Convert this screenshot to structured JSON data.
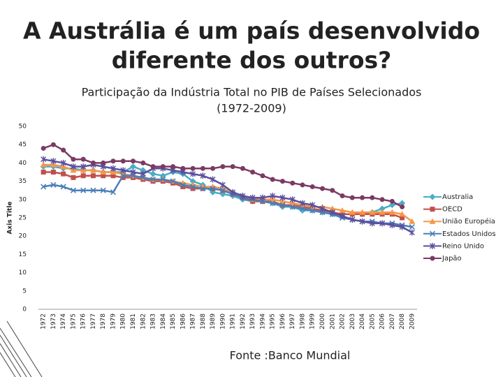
{
  "slide_title": [
    "A Austrália é um país desenvolvido",
    "diferente dos outros?"
  ],
  "source": "Fonte :Banco Mundial",
  "chart_data": {
    "type": "line",
    "title": [
      "Participação da Indústria Total no PIB de Países Selecionados",
      "(1972-2009)"
    ],
    "y_label": "Axis Title",
    "categories": [
      "1972",
      "1973",
      "1974",
      "1975",
      "1976",
      "1977",
      "1978",
      "1979",
      "1980",
      "1981",
      "1982",
      "1983",
      "1984",
      "1985",
      "1986",
      "1987",
      "1988",
      "1989",
      "1990",
      "1991",
      "1992",
      "1993",
      "1994",
      "1995",
      "1996",
      "1997",
      "1998",
      "1999",
      "2000",
      "2001",
      "2002",
      "2003",
      "2004",
      "2005",
      "2006",
      "2007",
      "2008",
      "2009"
    ],
    "ylim": [
      0,
      50
    ],
    "yticks": [
      0,
      5,
      10,
      15,
      20,
      25,
      30,
      35,
      40,
      45,
      50
    ],
    "grid": false,
    "legend": "right",
    "series": [
      {
        "name": "Australia",
        "color": "#4bacc6",
        "marker": "diamond",
        "values": [
          39,
          39,
          38.5,
          38.5,
          38,
          38,
          37.5,
          37.5,
          37.5,
          39,
          38,
          37,
          36.5,
          37.5,
          37,
          35,
          34,
          32,
          31.5,
          31,
          30,
          29.5,
          29.5,
          29,
          28,
          28,
          27,
          27,
          26.5,
          26,
          26,
          26,
          26,
          26.5,
          27.5,
          28.5,
          29,
          null
        ]
      },
      {
        "name": "OECD",
        "color": "#c0504d",
        "marker": "square",
        "values": [
          37.5,
          37.5,
          37,
          36,
          36.5,
          36.5,
          36.5,
          36.5,
          36,
          36,
          35.5,
          35,
          35,
          34.5,
          33.5,
          33,
          33,
          33,
          32.5,
          31.5,
          30.5,
          29.5,
          29.5,
          29.5,
          28.5,
          28.5,
          28,
          27.5,
          27,
          26.5,
          26,
          26,
          26,
          26,
          26,
          26,
          25,
          null
        ]
      },
      {
        "name": "União Européia",
        "color": "#f79646",
        "marker": "triangle",
        "values": [
          39.5,
          39.5,
          39,
          38,
          38,
          38,
          37.5,
          37.5,
          37,
          36.5,
          36,
          35.5,
          35.5,
          35,
          34.5,
          34,
          33.5,
          33.5,
          33,
          32,
          31,
          30,
          30,
          30,
          29.5,
          29,
          28.5,
          28,
          28,
          27.5,
          27,
          26.5,
          26.5,
          26.5,
          26.5,
          26.5,
          26,
          24
        ]
      },
      {
        "name": "Estados Unidos",
        "color": "#4a7eb8",
        "marker": "x",
        "values": [
          33.5,
          34,
          33.5,
          32.5,
          32.5,
          32.5,
          32.5,
          32,
          36.5,
          36.5,
          36,
          35.5,
          35.5,
          35,
          34,
          33.5,
          33,
          33,
          32.5,
          31.5,
          30.5,
          30,
          29.5,
          29,
          28.5,
          28,
          27.5,
          27,
          26.5,
          26,
          25,
          24.5,
          24,
          24,
          23.5,
          23.5,
          23,
          22.5
        ]
      },
      {
        "name": "Reino Unido",
        "color": "#5a4f9e",
        "marker": "star",
        "values": [
          41,
          40.5,
          40,
          39,
          39,
          39.5,
          39,
          38.5,
          38,
          37.5,
          37,
          38.5,
          38.5,
          38,
          37.5,
          37,
          36.5,
          35.5,
          34,
          32,
          31,
          30.5,
          30.5,
          31,
          30.5,
          30,
          29,
          28.5,
          27.5,
          26.5,
          25.5,
          24.5,
          24,
          23.5,
          23.5,
          23,
          22.5,
          21
        ]
      },
      {
        "name": "Japão",
        "color": "#7b3a62",
        "marker": "circle",
        "values": [
          44,
          45,
          43.5,
          41,
          41,
          40,
          40,
          40.5,
          40.5,
          40.5,
          40,
          39,
          39,
          39,
          38.5,
          38.5,
          38.5,
          38.5,
          39,
          39,
          38.5,
          37.5,
          36.5,
          35.5,
          35,
          34.5,
          34,
          33.5,
          33,
          32.5,
          31,
          30.5,
          30.5,
          30.5,
          30,
          29.5,
          28,
          null
        ]
      }
    ]
  }
}
